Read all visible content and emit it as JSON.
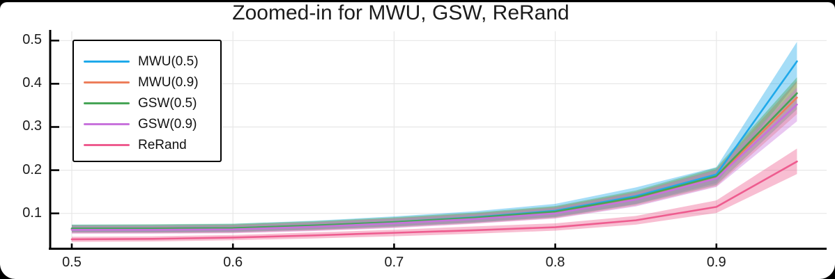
{
  "title": "Zoomed-in for MWU, GSW, ReRand",
  "chart_data": {
    "type": "line",
    "title": "Zoomed-in for MWU, GSW, ReRand",
    "xlabel": "",
    "ylabel": "",
    "grid": true,
    "legend_position": "top-left",
    "xlim": [
      0.4866,
      0.9684
    ],
    "ylim": [
      0.0206,
      0.5214
    ],
    "xticks": [
      0.5,
      0.6,
      0.7,
      0.8,
      0.9
    ],
    "yticks": [
      0.1,
      0.2,
      0.3,
      0.4,
      0.5
    ],
    "x": [
      0.5,
      0.55,
      0.6,
      0.65,
      0.7,
      0.75,
      0.8,
      0.85,
      0.9,
      0.95
    ],
    "series": [
      {
        "name": "MWU(0.5)",
        "color": "#1FA9EA",
        "values": [
          0.065,
          0.065,
          0.066,
          0.072,
          0.08,
          0.091,
          0.106,
          0.14,
          0.19,
          0.452
        ],
        "lower": [
          0.056,
          0.056,
          0.057,
          0.062,
          0.069,
          0.079,
          0.092,
          0.122,
          0.17,
          0.403
        ],
        "upper": [
          0.074,
          0.074,
          0.076,
          0.083,
          0.093,
          0.105,
          0.122,
          0.16,
          0.207,
          0.497
        ]
      },
      {
        "name": "MWU(0.9)",
        "color": "#ED7E5B",
        "values": [
          0.063,
          0.063,
          0.064,
          0.07,
          0.078,
          0.088,
          0.102,
          0.134,
          0.183,
          0.368
        ],
        "lower": [
          0.054,
          0.054,
          0.055,
          0.06,
          0.067,
          0.077,
          0.089,
          0.118,
          0.163,
          0.33
        ],
        "upper": [
          0.072,
          0.072,
          0.074,
          0.08,
          0.089,
          0.1,
          0.115,
          0.15,
          0.202,
          0.407
        ]
      },
      {
        "name": "GSW(0.5)",
        "color": "#47A556",
        "values": [
          0.065,
          0.065,
          0.066,
          0.072,
          0.08,
          0.09,
          0.104,
          0.137,
          0.186,
          0.378
        ],
        "lower": [
          0.056,
          0.056,
          0.057,
          0.062,
          0.07,
          0.079,
          0.091,
          0.121,
          0.166,
          0.341
        ],
        "upper": [
          0.074,
          0.075,
          0.076,
          0.082,
          0.091,
          0.102,
          0.117,
          0.153,
          0.206,
          0.415
        ]
      },
      {
        "name": "GSW(0.9)",
        "color": "#C873DC",
        "values": [
          0.062,
          0.062,
          0.063,
          0.069,
          0.077,
          0.087,
          0.1,
          0.132,
          0.181,
          0.352
        ],
        "lower": [
          0.053,
          0.053,
          0.054,
          0.059,
          0.066,
          0.076,
          0.088,
          0.116,
          0.161,
          0.313
        ],
        "upper": [
          0.071,
          0.071,
          0.072,
          0.079,
          0.088,
          0.098,
          0.113,
          0.148,
          0.2,
          0.391
        ]
      },
      {
        "name": "ReRand",
        "color": "#EE5C8F",
        "values": [
          0.04,
          0.041,
          0.044,
          0.049,
          0.055,
          0.061,
          0.068,
          0.084,
          0.115,
          0.22
        ],
        "lower": [
          0.034,
          0.035,
          0.038,
          0.042,
          0.047,
          0.053,
          0.06,
          0.074,
          0.101,
          0.191
        ],
        "upper": [
          0.046,
          0.047,
          0.05,
          0.056,
          0.062,
          0.07,
          0.077,
          0.094,
          0.13,
          0.25
        ]
      }
    ],
    "band_opacity": 0.4,
    "grid_color": "#e7e7e7",
    "axis_color": "#000000"
  }
}
